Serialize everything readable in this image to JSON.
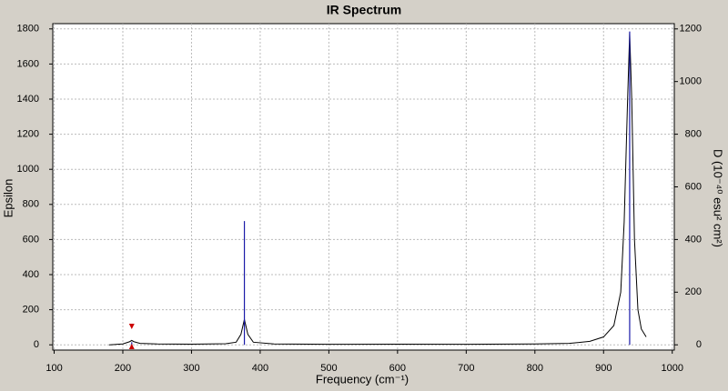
{
  "chart_data": {
    "type": "line",
    "title": "IR Spectrum",
    "xlabel": "Frequency (cm⁻¹)",
    "ylabel": "Epsilon",
    "y2label": "D (10⁻⁴⁰ esu² cm²)",
    "xlim": [
      98,
      1003
    ],
    "xticks": [
      100,
      200,
      300,
      400,
      500,
      600,
      700,
      800,
      900,
      1000
    ],
    "ylim": [
      -30,
      1830
    ],
    "yticks": [
      0,
      200,
      400,
      600,
      800,
      1000,
      1200,
      1400,
      1600,
      1800
    ],
    "y2lim": [
      -20,
      1220
    ],
    "y2ticks": [
      0,
      200,
      400,
      600,
      800,
      1000,
      1200
    ],
    "grid": true,
    "series": [
      {
        "color": "#000000",
        "mark": "curve",
        "x": [
          180,
          200,
          210,
          213,
          216,
          225,
          250,
          300,
          350,
          365,
          372,
          377,
          382,
          390,
          420,
          500,
          600,
          700,
          800,
          850,
          880,
          900,
          915,
          925,
          930,
          935,
          938,
          941,
          945,
          950,
          955,
          962
        ],
        "values": [
          0,
          5,
          18,
          25,
          18,
          8,
          5,
          4,
          6,
          15,
          60,
          145,
          60,
          15,
          5,
          3,
          4,
          3,
          5,
          8,
          20,
          45,
          110,
          300,
          700,
          1400,
          1780,
          1400,
          600,
          200,
          90,
          45
        ]
      },
      {
        "color": "#1a1aa8",
        "mark": "stick",
        "axis": "y2",
        "x": [
          213,
          377,
          938
        ],
        "values": [
          10,
          470,
          1190
        ]
      }
    ]
  }
}
